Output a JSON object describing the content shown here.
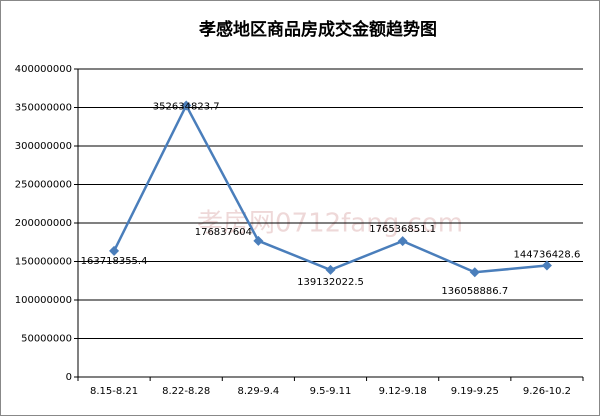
{
  "chart_data": {
    "type": "line",
    "title": "孝感地区商品房成交金额趋势图",
    "watermark": "孝房网0712fang.com",
    "categories": [
      "8.15-8.21",
      "8.22-8.28",
      "8.29-9.4",
      "9.5-9.11",
      "9.12-9.18",
      "9.19-9.25",
      "9.26-10.2"
    ],
    "series": [
      {
        "name": "成交金额",
        "color": "#4a7ebb",
        "values": [
          163718355.4,
          352634823.7,
          176837604,
          139132022.5,
          176536851.1,
          136058886.7,
          144736428.6
        ]
      }
    ],
    "ylim": [
      0,
      400000000
    ],
    "yticks": [
      0,
      50000000,
      100000000,
      150000000,
      200000000,
      250000000,
      300000000,
      350000000,
      400000000
    ],
    "grid": true
  }
}
